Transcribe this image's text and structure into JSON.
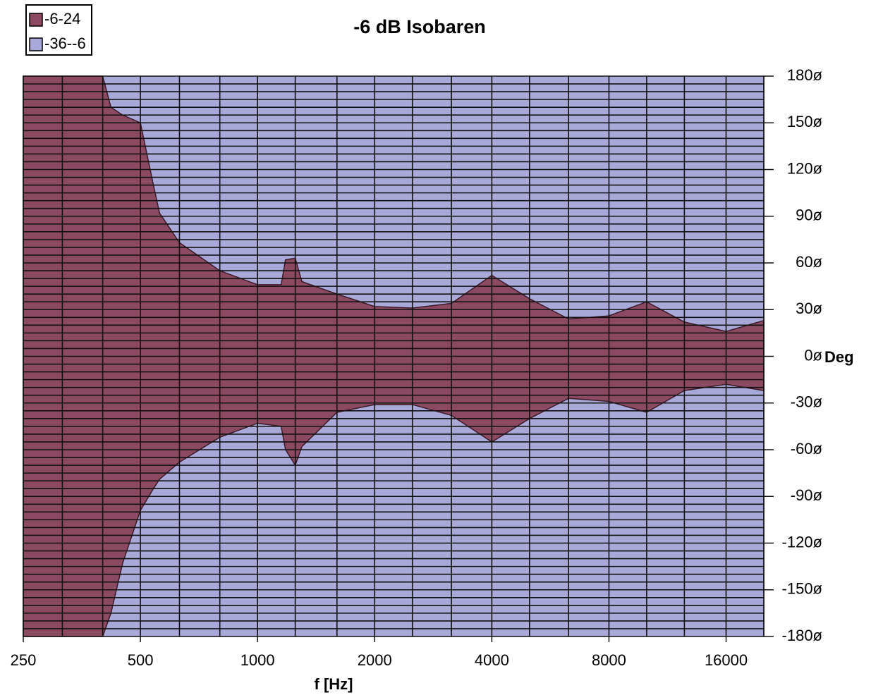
{
  "chart_data": {
    "type": "contour",
    "title": "-6 dB Isobaren",
    "x_label": "f [Hz]",
    "y_label": "Deg",
    "x_scale": "log",
    "xlim": [
      250,
      20000
    ],
    "xticks": [
      250,
      500,
      1000,
      2000,
      4000,
      8000,
      16000
    ],
    "xminorticks": [
      250,
      315,
      400,
      500,
      630,
      800,
      1000,
      1250,
      1600,
      2000,
      2500,
      3150,
      4000,
      5000,
      6300,
      8000,
      10000,
      12500,
      16000,
      20000
    ],
    "ylim": [
      -180,
      180
    ],
    "yticks": [
      {
        "value": 180,
        "label": "180ø"
      },
      {
        "value": 150,
        "label": "150ø"
      },
      {
        "value": 120,
        "label": "120ø"
      },
      {
        "value": 90,
        "label": "90ø"
      },
      {
        "value": 60,
        "label": "60ø"
      },
      {
        "value": 30,
        "label": "30ø"
      },
      {
        "value": 0,
        "label": "0ø"
      },
      {
        "value": -30,
        "label": "-30ø"
      },
      {
        "value": -60,
        "label": "-60ø"
      },
      {
        "value": -90,
        "label": "-90ø"
      },
      {
        "value": -120,
        "label": "-120ø"
      },
      {
        "value": -150,
        "label": "-150ø"
      },
      {
        "value": -180,
        "label": "-180ø"
      }
    ],
    "yminorticks": [
      -175,
      -170,
      -165,
      -160,
      -155,
      -150,
      -145,
      -140,
      -135,
      -130,
      -125,
      -120,
      -115,
      -110,
      -105,
      -100,
      -95,
      -90,
      -85,
      -80,
      -75,
      -70,
      -65,
      -60,
      -55,
      -50,
      -45,
      -40,
      -35,
      -30,
      -25,
      -20,
      -15,
      -10,
      -5,
      0,
      5,
      10,
      15,
      20,
      25,
      30,
      35,
      40,
      45,
      50,
      55,
      60,
      65,
      70,
      75,
      80,
      85,
      90,
      95,
      100,
      105,
      110,
      115,
      120,
      125,
      130,
      135,
      140,
      145,
      150,
      155,
      160,
      165,
      170,
      175
    ],
    "y_axis_side": "right",
    "grid": true,
    "legend": "top-left",
    "x": [
      250,
      400,
      420,
      450,
      500,
      540,
      560,
      630,
      800,
      1000,
      1150,
      1180,
      1250,
      1300,
      1600,
      2000,
      2500,
      3150,
      4000,
      5000,
      6300,
      8000,
      10000,
      12500,
      16000,
      20000
    ],
    "series": [
      {
        "name": "-6-24",
        "color": "#8c4a62",
        "upper": [
          180,
          180,
          160,
          155,
          150,
          110,
          92,
          73,
          55,
          46,
          46,
          62,
          63,
          48,
          40,
          32,
          31,
          34,
          52,
          37,
          24,
          26,
          35,
          22,
          16,
          23
        ],
        "lower": [
          -180,
          -180,
          -165,
          -133,
          -99,
          -85,
          -79,
          -68,
          -52,
          -43,
          -45,
          -60,
          -70,
          -58,
          -36,
          -31,
          -31,
          -38,
          -55,
          -40,
          -27,
          -29,
          -36,
          -22,
          -18,
          -22
        ]
      },
      {
        "name": "-36--6",
        "color": "#a9a9d9"
      }
    ]
  }
}
